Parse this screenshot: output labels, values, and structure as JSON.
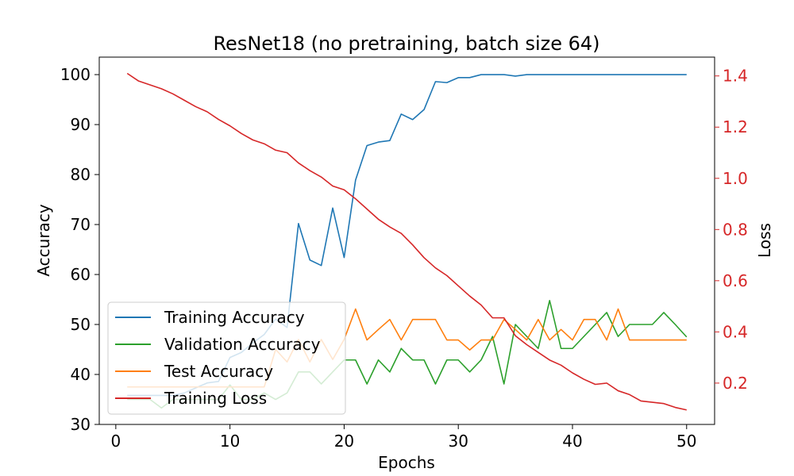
{
  "chart_data": {
    "type": "line",
    "title": "ResNet18 (no pretraining, batch size 64)",
    "xlabel": "Epochs",
    "ylabel": "Accuracy",
    "y2label": "Loss",
    "xlim": [
      -1.45,
      52.45
    ],
    "ylim": [
      30,
      103.5
    ],
    "y2lim": [
      0.0385,
      1.4735
    ],
    "xticks": [
      0,
      10,
      20,
      30,
      40,
      50
    ],
    "yticks": [
      30,
      40,
      50,
      60,
      70,
      80,
      90,
      100
    ],
    "y2ticks": [
      0.2,
      0.4,
      0.6,
      0.8,
      1.0,
      1.2,
      1.4
    ],
    "y2tick_labels": [
      "0.2",
      "0.4",
      "0.6",
      "0.8",
      "1.0",
      "1.2",
      "1.4"
    ],
    "y2color": "#d62728",
    "grid": false,
    "legend_position": "lower-left",
    "x": [
      1,
      2,
      3,
      4,
      5,
      6,
      7,
      8,
      9,
      10,
      11,
      12,
      13,
      14,
      15,
      16,
      17,
      18,
      19,
      20,
      21,
      22,
      23,
      24,
      25,
      26,
      27,
      28,
      29,
      30,
      31,
      32,
      33,
      34,
      35,
      36,
      37,
      38,
      39,
      40,
      41,
      42,
      43,
      44,
      45,
      46,
      47,
      48,
      49,
      50
    ],
    "series": [
      {
        "name": "Training Accuracy",
        "color": "#1f77b4",
        "axis": "left",
        "values": [
          35.8,
          35.8,
          35.8,
          35.8,
          35.8,
          36.3,
          37.3,
          38.3,
          38.6,
          43.4,
          44.4,
          46.3,
          48.0,
          51.1,
          49.4,
          70.2,
          62.9,
          61.8,
          73.3,
          63.4,
          78.9,
          85.8,
          86.5,
          86.8,
          92.1,
          91.0,
          93.0,
          98.6,
          98.4,
          99.4,
          99.4,
          100,
          100,
          100,
          99.7,
          100,
          100,
          100,
          100,
          100,
          100,
          100,
          100,
          100,
          100,
          100,
          100,
          100,
          100,
          100
        ]
      },
      {
        "name": "Validation Accuracy",
        "color": "#2ca02c",
        "axis": "left",
        "values": [
          35.0,
          35.0,
          35.0,
          33.3,
          35.0,
          35.0,
          35.0,
          35.0,
          35.0,
          37.9,
          35.0,
          35.0,
          36.3,
          35.0,
          36.3,
          40.5,
          40.5,
          38.1,
          40.5,
          42.9,
          42.9,
          38.1,
          42.9,
          40.5,
          45.2,
          42.9,
          42.9,
          38.1,
          42.9,
          42.9,
          40.5,
          42.9,
          47.6,
          38.1,
          50.0,
          47.6,
          45.2,
          54.8,
          45.2,
          45.2,
          47.6,
          50.0,
          52.4,
          47.6,
          50.0,
          50.0,
          50.0,
          52.4,
          50.0,
          47.5
        ]
      },
      {
        "name": "Test Accuracy",
        "color": "#ff7f0e",
        "axis": "left",
        "values": [
          37.5,
          37.5,
          37.5,
          37.5,
          37.5,
          37.5,
          37.5,
          37.5,
          37.5,
          37.5,
          37.5,
          37.5,
          37.5,
          45.0,
          42.5,
          47.0,
          42.5,
          47.0,
          43.0,
          47.0,
          53.1,
          46.9,
          49.0,
          51.0,
          46.9,
          51.0,
          51.0,
          51.0,
          46.9,
          46.9,
          44.9,
          46.9,
          46.9,
          51.0,
          49.0,
          46.9,
          51.0,
          46.9,
          49.0,
          46.9,
          51.0,
          51.0,
          46.9,
          53.1,
          46.9,
          46.9,
          46.9,
          46.9,
          46.9,
          46.9
        ]
      },
      {
        "name": "Training Loss",
        "color": "#d62728",
        "axis": "right",
        "values": [
          1.41,
          1.38,
          1.365,
          1.35,
          1.33,
          1.305,
          1.28,
          1.26,
          1.23,
          1.205,
          1.175,
          1.15,
          1.135,
          1.11,
          1.1,
          1.06,
          1.03,
          1.005,
          0.97,
          0.955,
          0.92,
          0.88,
          0.84,
          0.81,
          0.785,
          0.74,
          0.69,
          0.65,
          0.62,
          0.58,
          0.54,
          0.505,
          0.455,
          0.455,
          0.385,
          0.35,
          0.32,
          0.29,
          0.27,
          0.24,
          0.215,
          0.195,
          0.2,
          0.17,
          0.155,
          0.13,
          0.125,
          0.12,
          0.105,
          0.095
        ]
      }
    ]
  }
}
